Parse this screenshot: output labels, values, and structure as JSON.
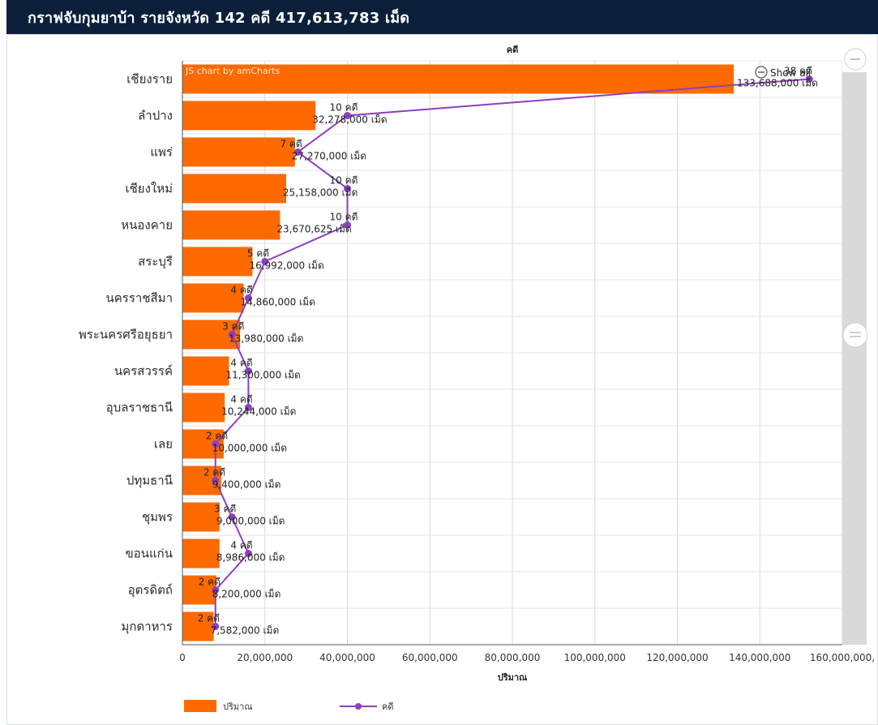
{
  "header": {
    "title": "กราฟจับกุมยาบ้า รายจังหวัด 142 คดี 417,613,783 เม็ด"
  },
  "credit": "JS chart by amCharts",
  "show_all_label": "Show all",
  "colors": {
    "bar": "#ff6a00",
    "line": "#8e3fbf",
    "header_bg": "#0b1f3a",
    "scrollbar": "#d9d9d9"
  },
  "chart_data": {
    "type": "bar",
    "orientation": "horizontal",
    "categories": [
      "เชียงราย",
      "ลำปาง",
      "แพร่",
      "เชียงใหม่",
      "หนองคาย",
      "สระบุรี",
      "นครราชสีมา",
      "พระนครศรีอยุธยา",
      "นครสวรรค์",
      "อุบลราชธานี",
      "เลย",
      "ปทุมธานี",
      "ชุมพร",
      "ขอนแก่น",
      "อุตรดิตถ์",
      "มุกดาหาร"
    ],
    "series": [
      {
        "name": "ปริมาณ",
        "type": "bar",
        "values": [
          133688000,
          32278000,
          27270000,
          25158000,
          23670625,
          16992000,
          14860000,
          13980000,
          11300000,
          10244000,
          10000000,
          9400000,
          9000000,
          8986000,
          8200000,
          7582000
        ],
        "labels": [
          "133,688,000 เม็ด",
          "32,278,000 เม็ด",
          "27,270,000 เม็ด",
          "25,158,000 เม็ด",
          "23,670,625 เม็ด",
          "16,992,000 เม็ด",
          "14,860,000 เม็ด",
          "13,980,000 เม็ด",
          "11,300,000 เม็ด",
          "10,244,000 เม็ด",
          "10,000,000 เม็ด",
          "9,400,000 เม็ด",
          "9,000,000 เม็ด",
          "8,986,000 เม็ด",
          "8,200,000 เม็ด",
          "7,582,000 เม็ด"
        ]
      },
      {
        "name": "คดี",
        "type": "line",
        "values": [
          38,
          10,
          7,
          10,
          10,
          5,
          4,
          3,
          4,
          4,
          2,
          2,
          3,
          4,
          2,
          2
        ],
        "labels": [
          "38 คดี",
          "10 คดี",
          "7 คดี",
          "10 คดี",
          "10 คดี",
          "5 คดี",
          "4 คดี",
          "3 คดี",
          "4 คดี",
          "4 คดี",
          "2 คดี",
          "2 คดี",
          "3 คดี",
          "4 คดี",
          "2 คดี",
          "2 คดี"
        ]
      }
    ],
    "xlabel": "ปริมาณ",
    "top_axis_title": "คดี",
    "xlim": [
      0,
      160000000
    ],
    "x_ticks": [
      0,
      20000000,
      40000000,
      60000000,
      80000000,
      100000000,
      120000000,
      140000000,
      160000000
    ],
    "x_tick_labels": [
      "0",
      "20,000,000",
      "40,000,000",
      "60,000,000",
      "80,000,000",
      "100,000,000",
      "120,000,000",
      "140,000,000",
      "160,000,000,"
    ],
    "cases_lim": [
      0,
      40
    ],
    "grid": true,
    "legend_position": "bottom-left"
  }
}
